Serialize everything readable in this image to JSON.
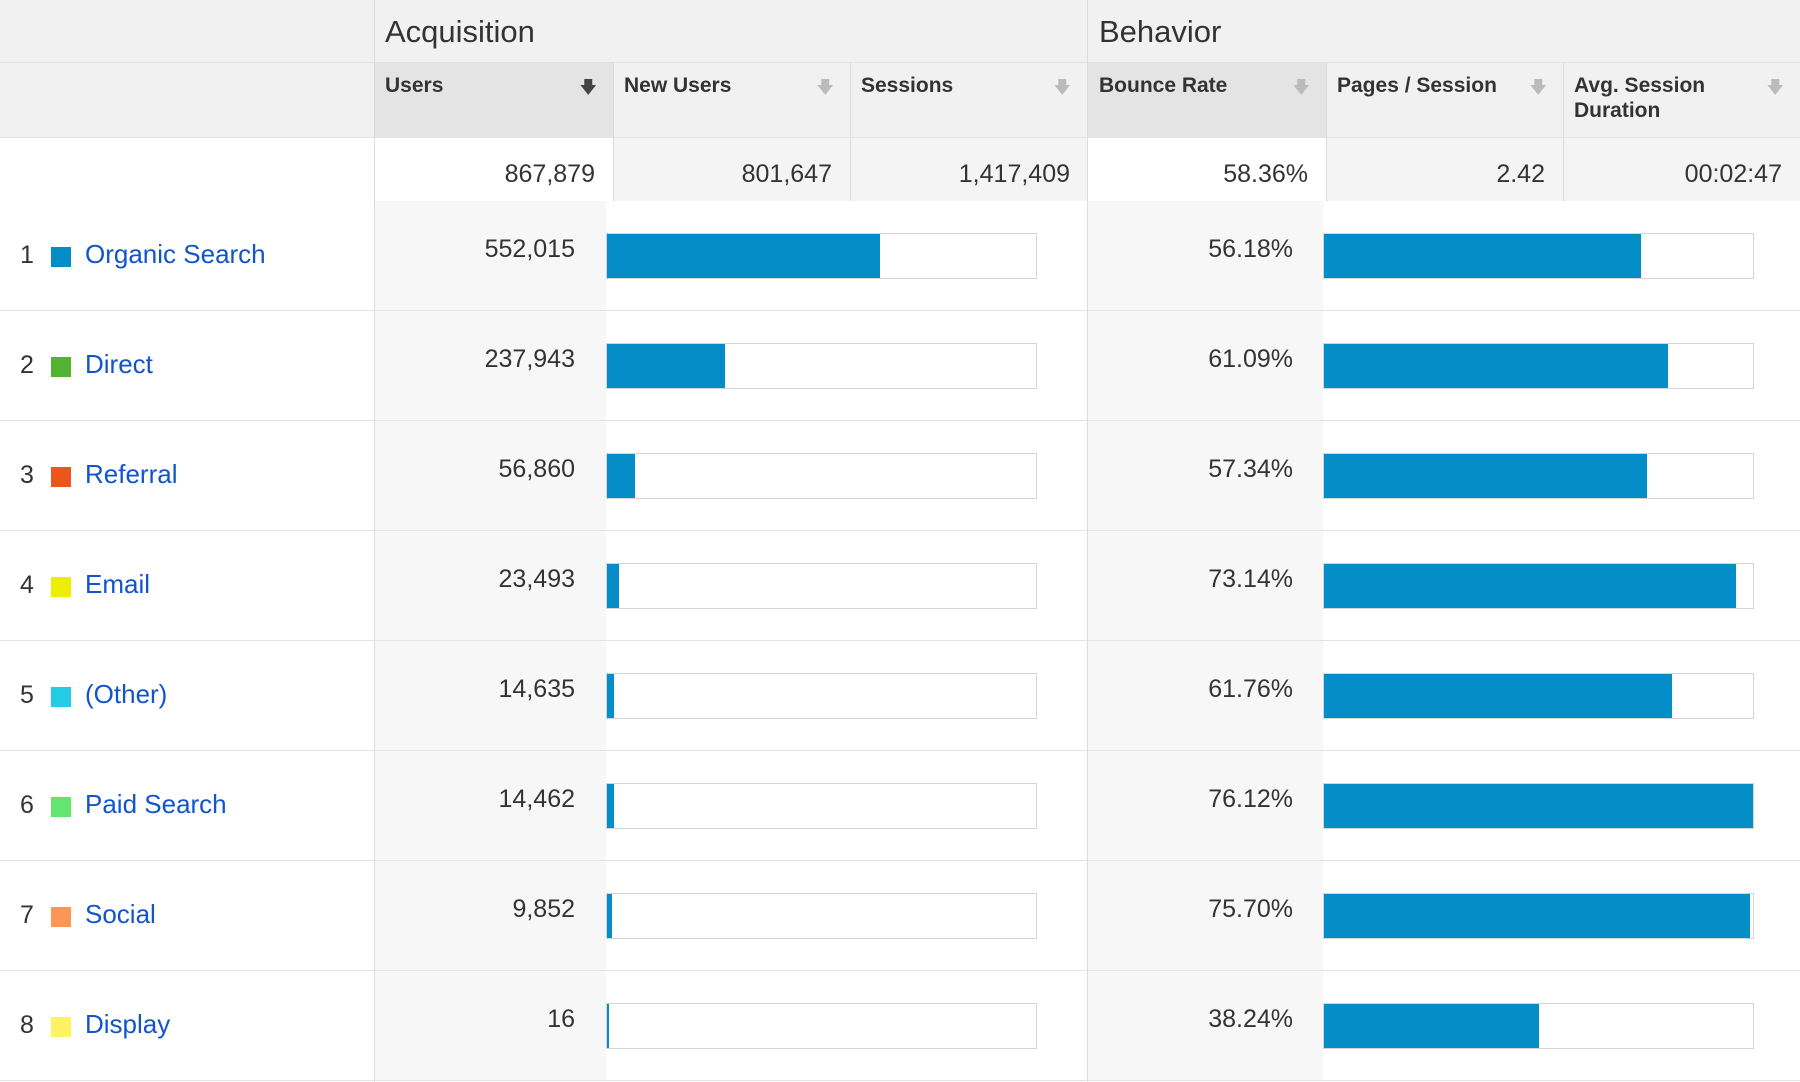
{
  "groups": {
    "acquisition": "Acquisition",
    "behavior": "Behavior"
  },
  "metrics": [
    {
      "label": "Users",
      "sorted": true
    },
    {
      "label": "New Users",
      "sorted": false
    },
    {
      "label": "Sessions",
      "sorted": false
    },
    {
      "label": "Bounce Rate",
      "sorted": false
    },
    {
      "label": "Pages / Session",
      "sorted": false
    },
    {
      "label": "Avg. Session Duration",
      "sorted": false
    }
  ],
  "totals": {
    "users": "867,879",
    "new_users": "801,647",
    "sessions": "1,417,409",
    "bounce_rate": "58.36%",
    "pages_per_session": "2.42",
    "avg_session_duration": "00:02:47"
  },
  "rows": [
    {
      "index": "1",
      "channel": "Organic Search",
      "color": "#058dc7",
      "users": "552,015",
      "users_share": 0.636,
      "bounce_rate": "56.18%",
      "bounce_share": 0.738
    },
    {
      "index": "2",
      "channel": "Direct",
      "color": "#50b432",
      "users": "237,943",
      "users_share": 0.274,
      "bounce_rate": "61.09%",
      "bounce_share": 0.803
    },
    {
      "index": "3",
      "channel": "Referral",
      "color": "#ed561b",
      "users": "56,860",
      "users_share": 0.066,
      "bounce_rate": "57.34%",
      "bounce_share": 0.753
    },
    {
      "index": "4",
      "channel": "Email",
      "color": "#edef00",
      "users": "23,493",
      "users_share": 0.027,
      "bounce_rate": "73.14%",
      "bounce_share": 0.961
    },
    {
      "index": "5",
      "channel": "(Other)",
      "color": "#24cbe5",
      "users": "14,635",
      "users_share": 0.017,
      "bounce_rate": "61.76%",
      "bounce_share": 0.811
    },
    {
      "index": "6",
      "channel": "Paid Search",
      "color": "#64e572",
      "users": "14,462",
      "users_share": 0.017,
      "bounce_rate": "76.12%",
      "bounce_share": 1.0
    },
    {
      "index": "7",
      "channel": "Social",
      "color": "#ff9655",
      "users": "9,852",
      "users_share": 0.011,
      "bounce_rate": "75.70%",
      "bounce_share": 0.994
    },
    {
      "index": "8",
      "channel": "Display",
      "color": "#fff263",
      "users": "16",
      "users_share": 0.0,
      "bounce_rate": "38.24%",
      "bounce_share": 0.502
    }
  ]
}
